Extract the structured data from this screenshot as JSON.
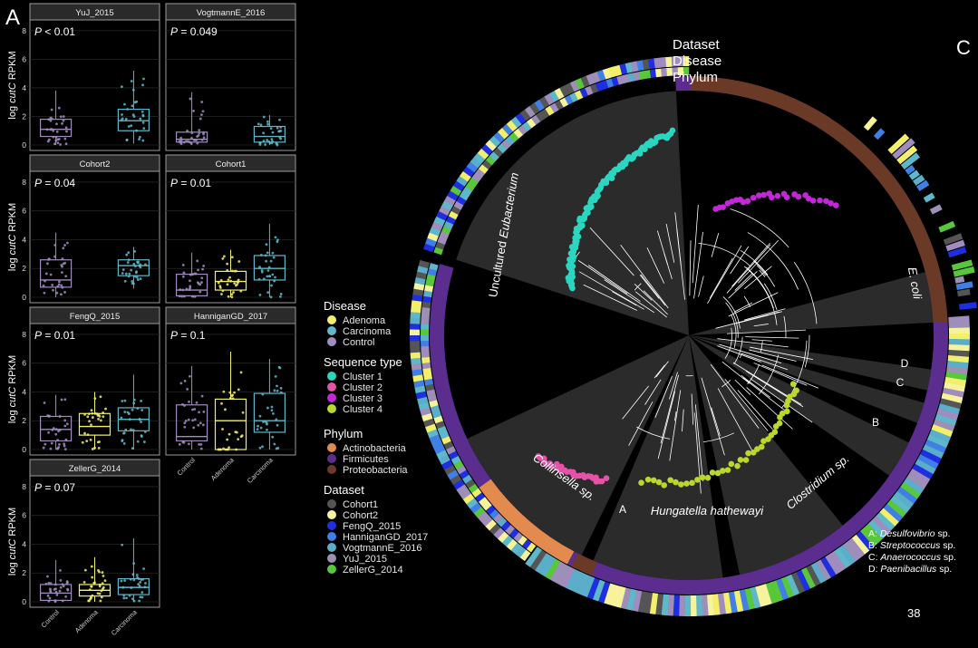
{
  "slide": {
    "page_number": "38"
  },
  "panel_a": {
    "letter": "A",
    "ylabel_prefix": "log ",
    "ylabel_italic": "cutC",
    "ylabel_suffix": " RPKM",
    "y_ticks": [
      "0",
      "2",
      "4",
      "6",
      "8"
    ]
  },
  "panel_c": {
    "letter": "C",
    "ring_labels": [
      "Dataset",
      "Disease",
      "Phylum"
    ],
    "clade_labels": {
      "eubacterium_prefix": "Uncultured ",
      "eubacterium_italic": "Eubacterium",
      "ecoli": "E. coli",
      "collinsella": "Collinsella sp.",
      "hungatella": "Hungatella hathewayi",
      "clostridium": "Clostridium sp.",
      "a": "A",
      "b": "B",
      "c": "C",
      "d": "D"
    },
    "footnotes": [
      {
        "key": "A: ",
        "name": "Desulfovibrio",
        "suffix": " sp."
      },
      {
        "key": "B: ",
        "name": "Streptococcus",
        "suffix": " sp."
      },
      {
        "key": "C: ",
        "name": "Anaerococcus",
        "suffix": " sp."
      },
      {
        "key": "D: ",
        "name": "Paenibacillus",
        "suffix": " sp."
      }
    ]
  },
  "legend": {
    "disease": {
      "title": "Disease",
      "items": [
        {
          "label": "Adenoma",
          "color": "#f4ef6b"
        },
        {
          "label": "Carcinoma",
          "color": "#5fb8c9"
        },
        {
          "label": "Control",
          "color": "#a08cbf"
        }
      ]
    },
    "sequence_type": {
      "title": "Sequence type",
      "items": [
        {
          "label": "Cluster 1",
          "color": "#2ad6c0"
        },
        {
          "label": "Cluster 2",
          "color": "#e453a8"
        },
        {
          "label": "Cluster 3",
          "color": "#c328d8"
        },
        {
          "label": "Cluster 4",
          "color": "#bcd72b"
        }
      ]
    },
    "phylum": {
      "title": "Phylum",
      "items": [
        {
          "label": "Actinobacteria",
          "color": "#e38b4f"
        },
        {
          "label": "Firmicutes",
          "color": "#5a2d8e"
        },
        {
          "label": "Proteobacteria",
          "color": "#6b3a26"
        }
      ]
    },
    "dataset": {
      "title": "Dataset",
      "items": [
        {
          "label": "Cohort1",
          "color": "#555555"
        },
        {
          "label": "Cohort2",
          "color": "#f7f39a"
        },
        {
          "label": "FengQ_2015",
          "color": "#1f2fe0"
        },
        {
          "label": "HanniganGD_2017",
          "color": "#3f7fe6"
        },
        {
          "label": "VogtmannE_2016",
          "color": "#5aaec9"
        },
        {
          "label": "YuJ_2015",
          "color": "#9d8fb5"
        },
        {
          "label": "ZellerG_2014",
          "color": "#58c73c"
        }
      ]
    }
  },
  "chart_data": [
    {
      "type": "box",
      "title": "YuJ_2015",
      "annotation": "P < 0.01",
      "ylabel": "log cutC RPKM",
      "ylim": [
        0,
        8.5
      ],
      "series": [
        {
          "name": "Control",
          "color": "#a08cbf",
          "q1": 0.6,
          "median": 1.1,
          "q3": 1.8,
          "whisker_low": 0.0,
          "whisker_high": 3.8
        },
        {
          "name": "Carcinoma",
          "color": "#5fb8c9",
          "q1": 1.0,
          "median": 1.7,
          "q3": 2.5,
          "whisker_low": 0.1,
          "whisker_high": 5.2
        }
      ]
    },
    {
      "type": "box",
      "title": "VogtmannE_2016",
      "annotation": "P = 0.049",
      "ylim": [
        0,
        8.5
      ],
      "series": [
        {
          "name": "Control",
          "color": "#a08cbf",
          "q1": 0.2,
          "median": 0.4,
          "q3": 0.9,
          "whisker_low": 0.0,
          "whisker_high": 3.7
        },
        {
          "name": "Carcinoma",
          "color": "#5fb8c9",
          "q1": 0.2,
          "median": 0.6,
          "q3": 1.3,
          "whisker_low": 0.0,
          "whisker_high": 2.1
        }
      ]
    },
    {
      "type": "box",
      "title": "Cohort2",
      "annotation": "P = 0.04",
      "ylabel": "log cutC RPKM",
      "ylim": [
        0,
        8.5
      ],
      "series": [
        {
          "name": "Control",
          "color": "#a08cbf",
          "q1": 0.7,
          "median": 1.2,
          "q3": 2.6,
          "whisker_low": 0.0,
          "whisker_high": 4.5
        },
        {
          "name": "Carcinoma",
          "color": "#5fb8c9",
          "q1": 1.5,
          "median": 2.2,
          "q3": 2.6,
          "whisker_low": 0.6,
          "whisker_high": 3.5
        }
      ]
    },
    {
      "type": "box",
      "title": "Cohort1",
      "annotation": "P = 0.01",
      "ylim": [
        0,
        8.5
      ],
      "series": [
        {
          "name": "Control",
          "color": "#a08cbf",
          "q1": 0.1,
          "median": 0.5,
          "q3": 1.6,
          "whisker_low": 0.0,
          "whisker_high": 3.1
        },
        {
          "name": "Adenoma",
          "color": "#f4ef6b",
          "q1": 0.5,
          "median": 1.1,
          "q3": 1.8,
          "whisker_low": 0.0,
          "whisker_high": 3.3
        },
        {
          "name": "Carcinoma",
          "color": "#5fb8c9",
          "q1": 1.2,
          "median": 2.0,
          "q3": 2.9,
          "whisker_low": 0.0,
          "whisker_high": 5.1
        }
      ]
    },
    {
      "type": "box",
      "title": "FengQ_2015",
      "annotation": "P = 0.01",
      "ylabel": "log cutC RPKM",
      "ylim": [
        0,
        8.5
      ],
      "series": [
        {
          "name": "Control",
          "color": "#a08cbf",
          "q1": 0.6,
          "median": 1.4,
          "q3": 2.3,
          "whisker_low": 0.0,
          "whisker_high": 3.8
        },
        {
          "name": "Adenoma",
          "color": "#f4ef6b",
          "q1": 1.0,
          "median": 1.6,
          "q3": 2.5,
          "whisker_low": 0.0,
          "whisker_high": 4.0
        },
        {
          "name": "Carcinoma",
          "color": "#5fb8c9",
          "q1": 1.3,
          "median": 2.1,
          "q3": 2.9,
          "whisker_low": 0.0,
          "whisker_high": 5.2
        }
      ]
    },
    {
      "type": "box",
      "title": "HanniganGD_2017",
      "annotation": "P = 0.1",
      "ylim": [
        0,
        8.5
      ],
      "series": [
        {
          "name": "Control",
          "color": "#a08cbf",
          "q1": 0.6,
          "median": 0.9,
          "q3": 3.1,
          "whisker_low": 0.0,
          "whisker_high": 5.8
        },
        {
          "name": "Adenoma",
          "color": "#f4ef6b",
          "q1": 0.0,
          "median": 2.0,
          "q3": 3.5,
          "whisker_low": 0.0,
          "whisker_high": 6.8
        },
        {
          "name": "Carcinoma",
          "color": "#5fb8c9",
          "q1": 1.2,
          "median": 2.0,
          "q3": 3.9,
          "whisker_low": 0.0,
          "whisker_high": 6.3
        }
      ]
    },
    {
      "type": "box",
      "title": "ZellerG_2014",
      "annotation": "P = 0.07",
      "ylabel": "log cutC RPKM",
      "ylim": [
        0,
        8.5
      ],
      "categories": [
        "Control",
        "Adenoma",
        "Carcinoma"
      ],
      "series": [
        {
          "name": "Control",
          "color": "#a08cbf",
          "q1": 0.1,
          "median": 0.6,
          "q3": 1.2,
          "whisker_low": 0.0,
          "whisker_high": 2.9
        },
        {
          "name": "Adenoma",
          "color": "#f4ef6b",
          "q1": 0.4,
          "median": 0.8,
          "q3": 1.2,
          "whisker_low": 0.0,
          "whisker_high": 3.1
        },
        {
          "name": "Carcinoma",
          "color": "#5fb8c9",
          "q1": 0.5,
          "median": 1.0,
          "q3": 1.6,
          "whisker_low": 0.0,
          "whisker_high": 4.4
        }
      ]
    }
  ]
}
